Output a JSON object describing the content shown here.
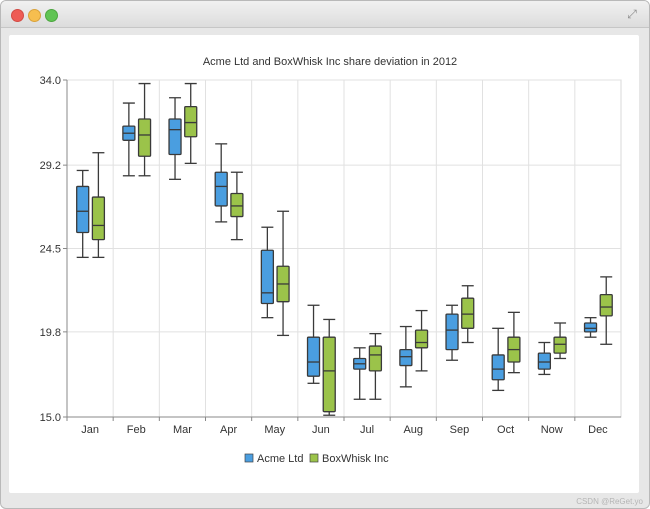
{
  "window": {
    "watermark": "CSDN @ReGet.yo"
  },
  "chart_data": {
    "type": "box",
    "title": "Acme Ltd and BoxWhisk Inc share deviation in 2012",
    "xlabel": "",
    "ylabel": "",
    "ylim": [
      15.0,
      34.0
    ],
    "y_ticks": [
      "15.0",
      "19.8",
      "24.5",
      "29.2",
      "34.0"
    ],
    "grid": true,
    "legend_position": "bottom",
    "categories": [
      "Jan",
      "Feb",
      "Mar",
      "Apr",
      "May",
      "Jun",
      "Jul",
      "Aug",
      "Sep",
      "Oct",
      "Now",
      "Dec"
    ],
    "series": [
      {
        "name": "Acme Ltd",
        "color": "#4a9ee0",
        "boxes": [
          {
            "min": 24.0,
            "q1": 25.4,
            "median": 26.6,
            "q3": 28.0,
            "max": 28.9
          },
          {
            "min": 28.6,
            "q1": 30.6,
            "median": 31.0,
            "q3": 31.4,
            "max": 32.7
          },
          {
            "min": 28.4,
            "q1": 29.8,
            "median": 31.2,
            "q3": 31.8,
            "max": 33.0
          },
          {
            "min": 26.0,
            "q1": 26.9,
            "median": 28.0,
            "q3": 28.8,
            "max": 30.4
          },
          {
            "min": 20.6,
            "q1": 21.4,
            "median": 22.0,
            "q3": 24.4,
            "max": 25.7
          },
          {
            "min": 16.9,
            "q1": 17.3,
            "median": 18.1,
            "q3": 19.5,
            "max": 21.3
          },
          {
            "min": 16.0,
            "q1": 17.7,
            "median": 18.0,
            "q3": 18.3,
            "max": 18.9
          },
          {
            "min": 16.7,
            "q1": 17.9,
            "median": 18.4,
            "q3": 18.8,
            "max": 20.1
          },
          {
            "min": 18.2,
            "q1": 18.8,
            "median": 19.9,
            "q3": 20.8,
            "max": 21.3
          },
          {
            "min": 16.5,
            "q1": 17.1,
            "median": 17.7,
            "q3": 18.5,
            "max": 20.0
          },
          {
            "min": 17.4,
            "q1": 17.7,
            "median": 18.1,
            "q3": 18.6,
            "max": 19.2
          },
          {
            "min": 19.5,
            "q1": 19.8,
            "median": 20.0,
            "q3": 20.3,
            "max": 20.6
          }
        ]
      },
      {
        "name": "BoxWhisk Inc",
        "color": "#9bc34a",
        "boxes": [
          {
            "min": 24.0,
            "q1": 25.0,
            "median": 25.8,
            "q3": 27.4,
            "max": 29.9
          },
          {
            "min": 28.6,
            "q1": 29.7,
            "median": 30.9,
            "q3": 31.8,
            "max": 33.8
          },
          {
            "min": 29.3,
            "q1": 30.8,
            "median": 31.6,
            "q3": 32.5,
            "max": 33.8
          },
          {
            "min": 25.0,
            "q1": 26.3,
            "median": 26.9,
            "q3": 27.6,
            "max": 28.8
          },
          {
            "min": 19.6,
            "q1": 21.5,
            "median": 22.5,
            "q3": 23.5,
            "max": 26.6
          },
          {
            "min": 15.1,
            "q1": 15.3,
            "median": 17.6,
            "q3": 19.5,
            "max": 20.5
          },
          {
            "min": 16.0,
            "q1": 17.6,
            "median": 18.5,
            "q3": 19.0,
            "max": 19.7
          },
          {
            "min": 17.6,
            "q1": 18.9,
            "median": 19.2,
            "q3": 19.9,
            "max": 21.0
          },
          {
            "min": 19.2,
            "q1": 20.0,
            "median": 20.8,
            "q3": 21.7,
            "max": 22.4
          },
          {
            "min": 17.5,
            "q1": 18.1,
            "median": 18.8,
            "q3": 19.5,
            "max": 20.9
          },
          {
            "min": 18.3,
            "q1": 18.6,
            "median": 19.1,
            "q3": 19.5,
            "max": 20.3
          },
          {
            "min": 19.1,
            "q1": 20.7,
            "median": 21.2,
            "q3": 21.9,
            "max": 22.9
          }
        ]
      }
    ]
  }
}
